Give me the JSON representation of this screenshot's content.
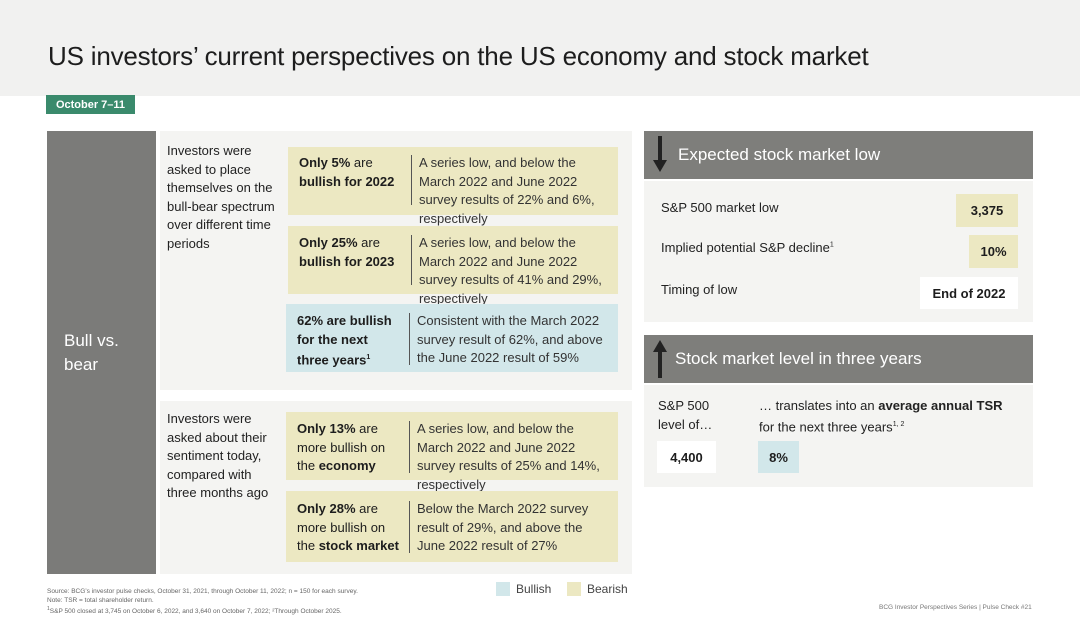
{
  "title": "US investors’ current perspectives on the US economy and stock market",
  "date_tag": "October 7–11",
  "side_label": "Bull vs. bear",
  "panel1": {
    "question": "Investors were asked to place themselves on the bull-bear spectrum over different time periods",
    "cards": [
      {
        "bold1": "Only 5%",
        "text1": " are",
        "bold2": "bullish for 2022",
        "desc": "A series low, and below the March 2022 and June 2022 survey results of 22% and 6%, respectively",
        "kind": "Bearish"
      },
      {
        "bold1": "Only 25%",
        "text1": " are",
        "bold2": "bullish for 2023",
        "desc": "A series low, and below the March 2022 and June 2022 survey results of 41% and 29%, respectively",
        "kind": "Bearish"
      },
      {
        "bold1": "62% are bullish",
        "text1": "",
        "bold2": "for the next three years",
        "sup": "1",
        "desc": "Consistent with the March 2022 survey result of 62%, and above the June 2022 result of 59%",
        "kind": "Bullish"
      }
    ]
  },
  "panel2": {
    "question": "Investors were asked about their sentiment today, compared with three months ago",
    "cards": [
      {
        "bold1": "Only 13%",
        "text1": " are",
        "line2": "more bullish on",
        "pre3": "the ",
        "bold3": "economy",
        "desc": "A series low, and below the March 2022 and June 2022 survey results of 25% and 14%, respectively",
        "kind": "Bearish"
      },
      {
        "bold1": "Only 28%",
        "text1": " are",
        "line2": "more bullish on",
        "pre3": "the ",
        "bold3": "stock market",
        "desc": "Below the March 2022 survey result of 29%, and above the June 2022 result of 27%",
        "kind": "Bearish"
      }
    ]
  },
  "low_panel": {
    "header": "Expected stock market low",
    "arrow": "down-arrow-icon",
    "rows": [
      {
        "label": "S&P 500 market low",
        "value": "3,375"
      },
      {
        "label": "Implied potential S&P decline",
        "sup": "1",
        "value": "10%"
      },
      {
        "label": "Timing of low",
        "value": "End of 2022"
      }
    ]
  },
  "level_panel": {
    "header": "Stock market level in three years",
    "arrow": "up-arrow-icon",
    "left_label": "S&P 500 level of…",
    "left_value": "4,400",
    "right_pre": "… translates into an ",
    "right_bold1": "average annual",
    "right_bold2": "TSR",
    "right_post": " for the next three years",
    "right_sup": "1, 2",
    "right_value": "8%"
  },
  "legend": {
    "bullish": "Bullish",
    "bearish": "Bearish"
  },
  "colors": {
    "bullish": "#d2e7ea",
    "bearish": "#ece8c2",
    "tag": "#3a8a6c",
    "side": "#7b7b79"
  },
  "footnote": {
    "line1": "Source: BCG’s investor pulse checks, October 31, 2021, through October 11, 2022; n = 150 for each survey.",
    "line2": "Note: TSR = total shareholder return.",
    "line3": "S&P 500 closed at 3,745 on October 6, 2022, and 3,640 on October 7, 2022; ²Through October 2025."
  },
  "series_text": "BCG Investor Perspectives Series | Pulse Check #21"
}
